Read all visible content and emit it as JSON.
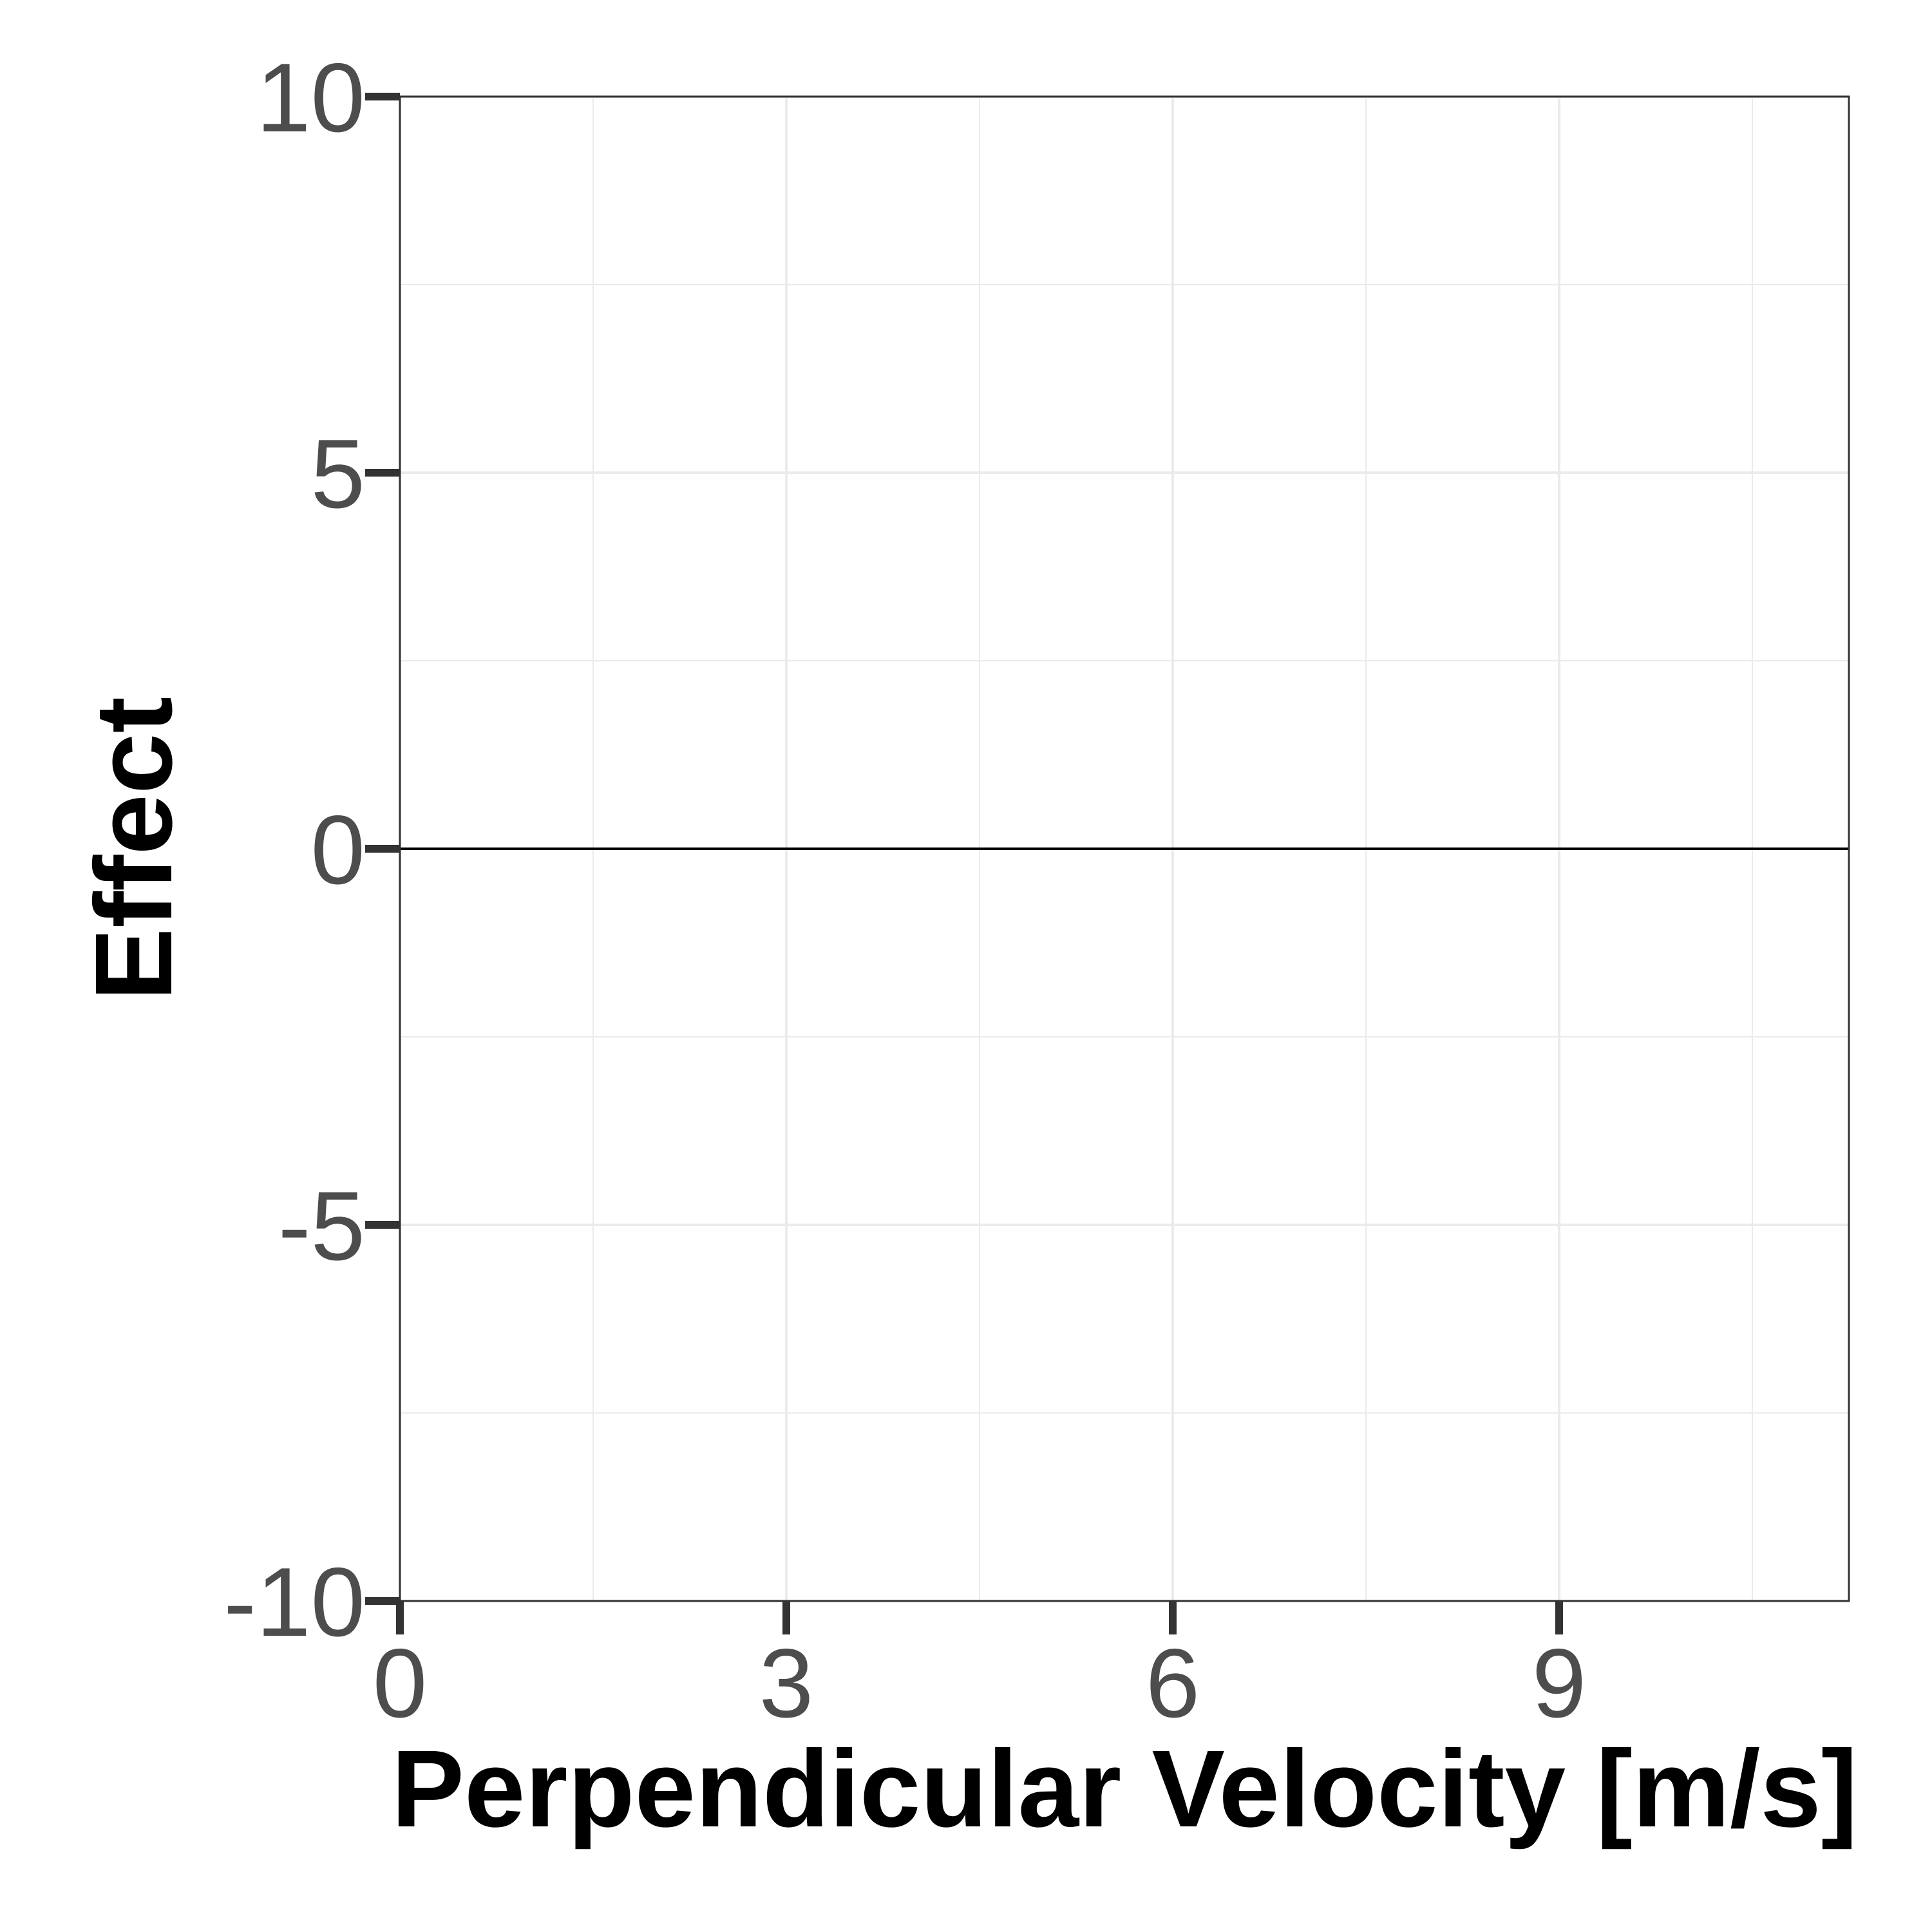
{
  "chart_data": {
    "type": "line",
    "title": "",
    "xlabel": "Perpendicular Velocity [m/s]",
    "ylabel": "Effect",
    "xlim": [
      0,
      11.25
    ],
    "ylim": [
      -10,
      10
    ],
    "x_ticks": [
      0,
      3,
      6,
      9
    ],
    "x_tick_labels": [
      "0",
      "3",
      "6",
      "9"
    ],
    "y_ticks": [
      -10,
      -5,
      0,
      5,
      10
    ],
    "y_tick_labels": [
      "-10",
      "-5",
      "0",
      "5",
      "10"
    ],
    "x_minor_gridlines": [
      1.5,
      4.5,
      7.5,
      10.5
    ],
    "y_minor_gridlines": [
      -7.5,
      -2.5,
      2.5,
      7.5
    ],
    "grid": true,
    "legend": "none",
    "series": [
      {
        "x": [
          0,
          1.5,
          3,
          4.5,
          6,
          7.5,
          9,
          10.5,
          11.25
        ],
        "y": [
          0,
          0,
          0,
          0,
          0,
          0,
          0,
          0,
          0
        ],
        "color": "#000000"
      }
    ],
    "colors": {
      "grid": "#ebebeb",
      "panel_border": "#333333",
      "ticks": "#333333",
      "tick_labels": "#4d4d4d",
      "axis_titles": "#000000"
    }
  }
}
